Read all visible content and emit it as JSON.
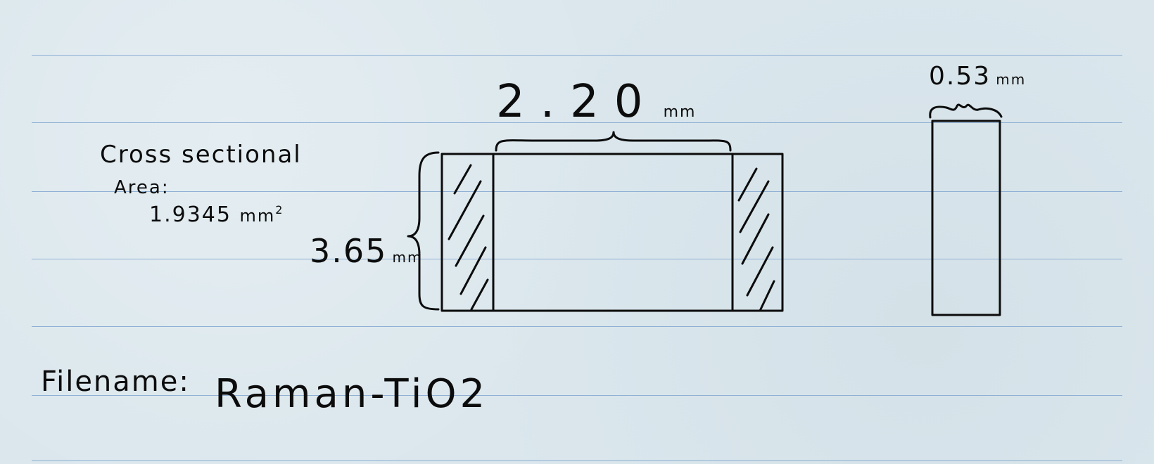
{
  "notes": {
    "area_line1": "Cross sectional",
    "area_line2": "Area:",
    "area_value": "1.9345",
    "area_unit": "mm",
    "area_exponent": "2"
  },
  "dimensions": {
    "width_value": "2.20",
    "width_unit": "mm",
    "height_value": "3.65",
    "height_unit": "mm",
    "depth_value": "0.53",
    "depth_unit": "mm"
  },
  "filename": {
    "label": "Filename:",
    "value": "Raman-TiO2"
  },
  "colors": {
    "paper": "#dbe7ed",
    "ruled_line": "#8fb0d4",
    "ink": "#0c0c0c"
  }
}
